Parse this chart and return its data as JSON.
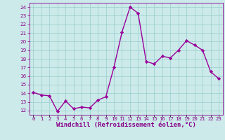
{
  "x": [
    0,
    1,
    2,
    3,
    4,
    5,
    6,
    7,
    8,
    9,
    10,
    11,
    12,
    13,
    14,
    15,
    16,
    17,
    18,
    19,
    20,
    21,
    22,
    23
  ],
  "y": [
    14.1,
    13.8,
    13.7,
    11.9,
    13.1,
    12.2,
    12.4,
    12.3,
    13.2,
    13.6,
    17.0,
    21.1,
    24.0,
    23.3,
    17.7,
    17.4,
    18.3,
    18.1,
    19.0,
    20.1,
    19.6,
    19.0,
    16.5,
    15.7
  ],
  "line_color": "#990099",
  "marker": "D",
  "markersize": 2.2,
  "linewidth": 1.0,
  "bg_color": "#cceaea",
  "grid_color": "#99cccc",
  "xlabel": "Windchill (Refroidissement éolien,°C)",
  "xlabel_fontsize": 6.5,
  "xlabel_color": "#880088",
  "xlabel_fontweight": "bold",
  "ytick_min": 12,
  "ytick_max": 24,
  "ytick_step": 1,
  "xtick_labels": [
    "0",
    "1",
    "2",
    "3",
    "4",
    "5",
    "6",
    "7",
    "8",
    "9",
    "10",
    "11",
    "12",
    "13",
    "14",
    "15",
    "16",
    "17",
    "18",
    "19",
    "20",
    "21",
    "22",
    "23"
  ],
  "tick_color": "#880088",
  "tick_fontsize": 5.2,
  "spine_color": "#880088"
}
